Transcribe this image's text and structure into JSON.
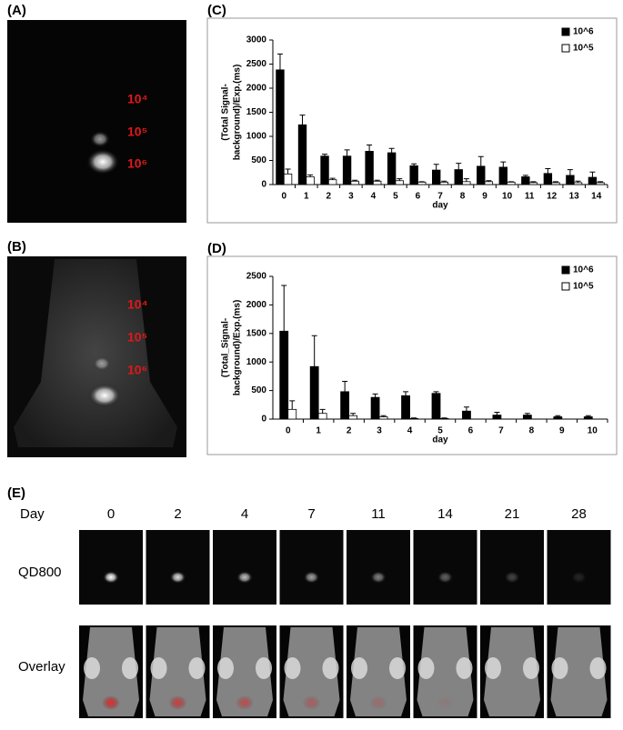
{
  "panel_a": {
    "label": "(A)",
    "marks": [
      "10⁴",
      "10⁵",
      "10⁶"
    ]
  },
  "panel_b": {
    "label": "(B)",
    "marks": [
      "10⁴",
      "10⁵",
      "10⁶"
    ]
  },
  "chart_data": [
    {
      "type": "bar",
      "label": "(C)",
      "ylabel": [
        "(Total Signal-",
        "background)/Exp.(ms)"
      ],
      "xlabel": "day",
      "categories": [
        "0",
        "1",
        "2",
        "3",
        "4",
        "5",
        "6",
        "7",
        "8",
        "9",
        "10",
        "11",
        "12",
        "13",
        "14"
      ],
      "series": [
        {
          "name": "10^6",
          "color": "#000000",
          "values": [
            2380,
            1240,
            590,
            590,
            690,
            660,
            390,
            300,
            310,
            380,
            360,
            160,
            230,
            190,
            150
          ],
          "errors": [
            330,
            200,
            40,
            130,
            130,
            90,
            40,
            120,
            130,
            200,
            110,
            30,
            100,
            120,
            110
          ]
        },
        {
          "name": "10^5",
          "color": "#ffffff",
          "values": [
            220,
            160,
            100,
            70,
            70,
            80,
            50,
            50,
            60,
            60,
            50,
            40,
            40,
            40,
            40
          ],
          "errors": [
            100,
            40,
            30,
            20,
            20,
            40,
            10,
            20,
            60,
            20,
            10,
            20,
            20,
            30,
            20
          ]
        }
      ],
      "ylim": [
        0,
        3000
      ],
      "yticks": [
        0,
        500,
        1000,
        1500,
        2000,
        2500,
        3000
      ],
      "legend": "top-right"
    },
    {
      "type": "bar",
      "label": "(D)",
      "ylabel": [
        "(Total_Signal-",
        "background)/Exp.(ms)"
      ],
      "xlabel": "day",
      "categories": [
        "0",
        "1",
        "2",
        "3",
        "4",
        "5",
        "6",
        "7",
        "8",
        "9",
        "10"
      ],
      "series": [
        {
          "name": "10^6",
          "color": "#000000",
          "values": [
            1540,
            920,
            480,
            380,
            410,
            450,
            140,
            70,
            70,
            40,
            40
          ],
          "errors": [
            800,
            540,
            180,
            60,
            70,
            30,
            70,
            50,
            30,
            20,
            20
          ]
        },
        {
          "name": "10^5",
          "color": "#ffffff",
          "values": [
            170,
            100,
            60,
            40,
            10,
            10,
            0,
            0,
            0,
            0,
            0
          ],
          "errors": [
            150,
            70,
            40,
            20,
            10,
            10,
            0,
            0,
            0,
            0,
            0
          ]
        }
      ],
      "ylim": [
        0,
        2500
      ],
      "yticks": [
        0,
        500,
        1000,
        1500,
        2000,
        2500
      ],
      "legend": "top-right"
    }
  ],
  "panel_e": {
    "label": "(E)",
    "day_header": "Day",
    "days": [
      "0",
      "2",
      "4",
      "7",
      "11",
      "14",
      "21",
      "28"
    ],
    "rows": [
      "QD800",
      "Overlay"
    ]
  }
}
